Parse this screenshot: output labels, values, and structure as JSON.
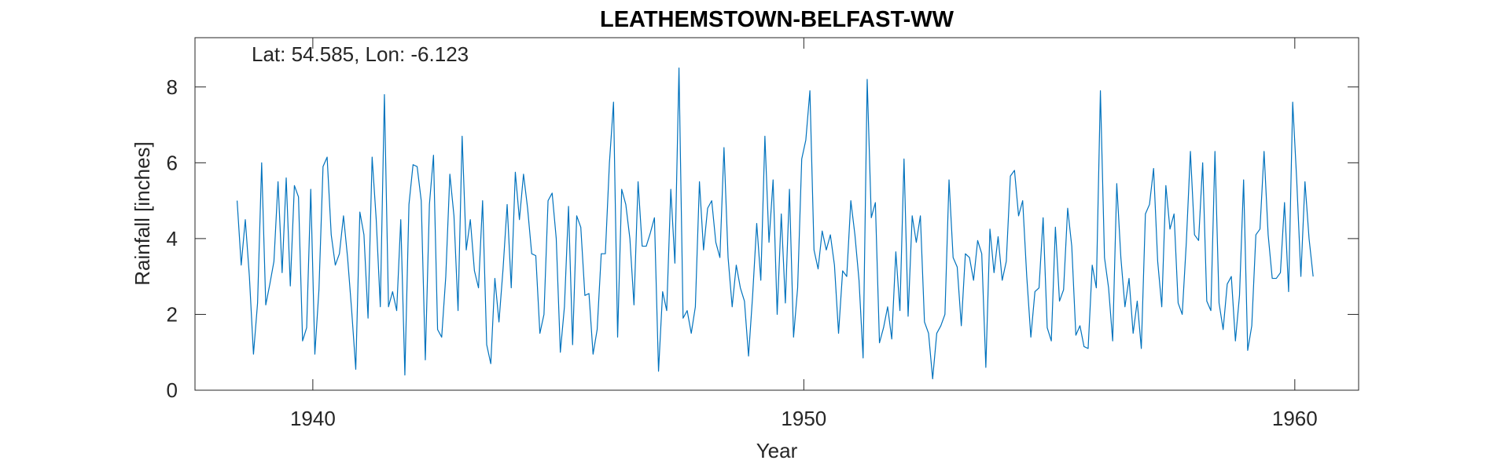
{
  "chart_data": {
    "type": "line",
    "title": "LEATHEMSTOWN-BELFAST-WW",
    "annotation": "Lat: 54.585, Lon: -6.123",
    "xlabel": "Year",
    "ylabel": "Rainfall [inches]",
    "xlim": [
      1937.6,
      1961.3
    ],
    "ylim": [
      0,
      9.3
    ],
    "xticks": [
      1940,
      1950,
      1960
    ],
    "yticks": [
      0,
      2,
      4,
      6,
      8
    ],
    "grid": false,
    "line_color": "#0072BD",
    "series": [
      {
        "x_start": 1938.458,
        "x_step": 0.08333,
        "values": [
          5.0,
          3.3,
          4.5,
          3.0,
          0.95,
          2.3,
          6.0,
          2.25,
          2.8,
          3.4,
          5.5,
          3.1,
          5.6,
          2.75,
          5.4,
          5.1,
          1.3,
          1.65,
          5.3,
          0.95,
          2.65,
          5.9,
          6.15,
          4.1,
          3.3,
          3.6,
          4.6,
          3.5,
          2.1,
          0.55,
          4.7,
          4.1,
          1.9,
          6.15,
          4.5,
          2.2,
          7.8,
          2.2,
          2.6,
          2.1,
          4.5,
          0.4,
          4.9,
          5.95,
          5.9,
          5.0,
          0.8,
          4.9,
          6.2,
          1.6,
          1.4,
          3.0,
          5.7,
          4.6,
          2.1,
          6.7,
          3.7,
          4.5,
          3.15,
          2.7,
          5.0,
          1.2,
          0.7,
          2.95,
          1.8,
          3.2,
          4.9,
          2.7,
          5.75,
          4.5,
          5.7,
          4.8,
          3.6,
          3.55,
          1.5,
          2.0,
          5.0,
          5.2,
          4.0,
          1.0,
          2.2,
          4.85,
          1.2,
          4.6,
          4.3,
          2.5,
          2.55,
          0.95,
          1.6,
          3.6,
          3.6,
          6.0,
          7.6,
          1.4,
          5.3,
          4.9,
          4.0,
          2.25,
          5.5,
          3.8,
          3.8,
          4.15,
          4.55,
          0.5,
          2.6,
          2.1,
          5.3,
          3.35,
          8.5,
          1.9,
          2.1,
          1.5,
          2.2,
          5.5,
          3.7,
          4.8,
          5.0,
          3.9,
          3.5,
          6.4,
          3.5,
          2.2,
          3.3,
          2.7,
          2.35,
          0.9,
          2.5,
          4.4,
          2.9,
          6.7,
          3.9,
          5.55,
          2.0,
          4.65,
          2.3,
          5.3,
          1.4,
          2.7,
          6.1,
          6.6,
          7.9,
          3.7,
          3.2,
          4.2,
          3.7,
          4.1,
          3.3,
          1.5,
          3.15,
          3.0,
          5.0,
          4.1,
          2.9,
          0.85,
          8.2,
          4.55,
          4.95,
          1.25,
          1.65,
          2.2,
          1.35,
          3.65,
          2.1,
          6.1,
          1.95,
          4.6,
          3.9,
          4.6,
          1.8,
          1.5,
          0.3,
          1.5,
          1.7,
          2.0,
          5.55,
          3.5,
          3.25,
          1.7,
          3.6,
          3.5,
          2.9,
          3.95,
          3.6,
          0.6,
          4.25,
          3.1,
          4.05,
          2.9,
          3.4,
          5.65,
          5.8,
          4.6,
          5.0,
          3.0,
          1.4,
          2.6,
          2.7,
          4.55,
          1.65,
          1.3,
          4.3,
          2.35,
          2.65,
          4.8,
          3.8,
          1.45,
          1.7,
          1.15,
          1.1,
          3.3,
          2.7,
          7.9,
          3.5,
          2.7,
          1.3,
          5.45,
          3.5,
          2.2,
          2.95,
          1.5,
          2.35,
          1.1,
          4.65,
          4.9,
          5.85,
          3.4,
          2.2,
          5.4,
          4.25,
          4.65,
          2.3,
          2.0,
          3.9,
          6.3,
          4.1,
          3.95,
          6.0,
          2.35,
          2.1,
          6.3,
          2.3,
          1.6,
          2.8,
          3.0,
          1.3,
          2.5,
          5.55,
          1.05,
          1.7,
          4.1,
          4.25,
          6.3,
          4.1,
          2.95,
          2.95,
          3.1,
          4.95,
          2.6,
          7.6,
          5.5,
          3.0,
          5.5,
          4.0,
          3.0
        ]
      }
    ]
  }
}
